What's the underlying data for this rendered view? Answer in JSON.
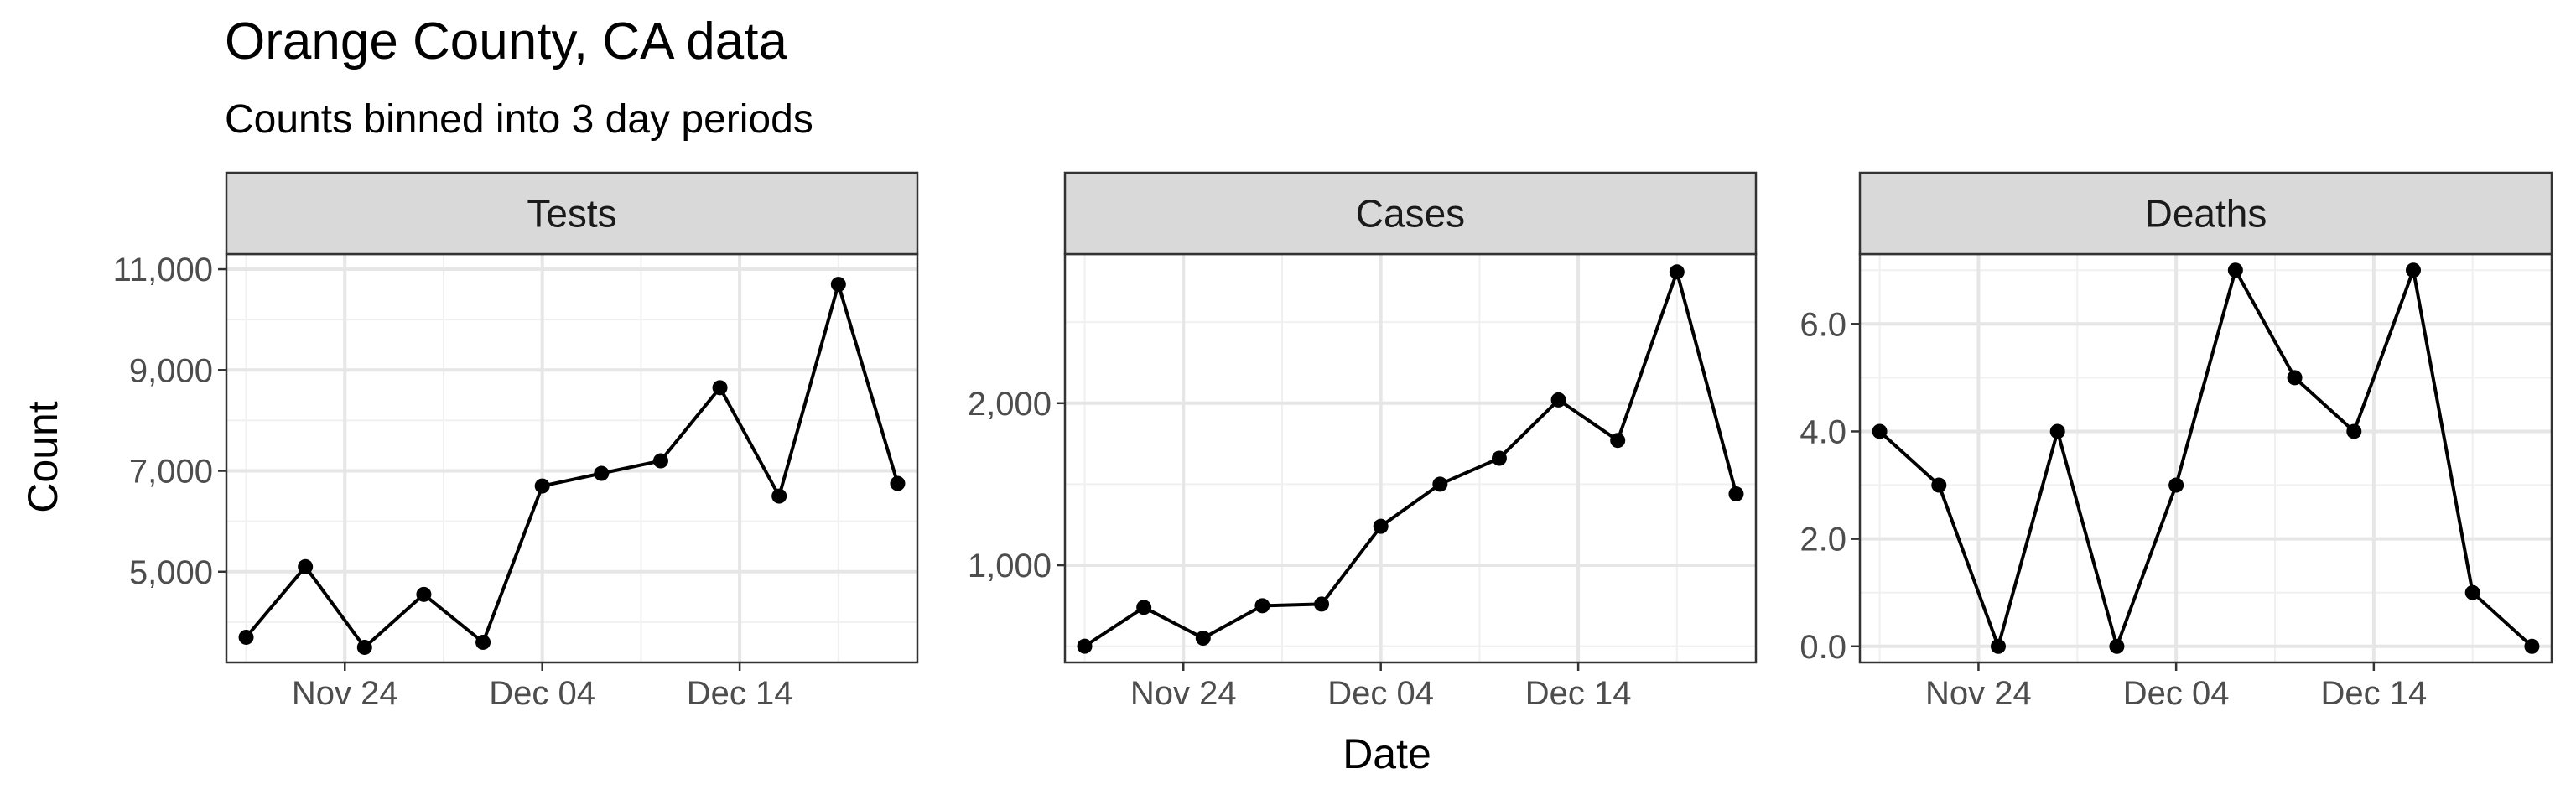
{
  "chart_data": {
    "type": "line",
    "title": "Orange County, CA data",
    "subtitle": "Counts binned into 3 day periods",
    "xlabel": "Date",
    "ylabel": "Count",
    "grid": true,
    "legend": "none",
    "line_color": "#000000",
    "point_color": "#000000",
    "strip_fill": "#d9d9d9",
    "x": [
      "2020-11-19",
      "2020-11-22",
      "2020-11-25",
      "2020-11-28",
      "2020-12-01",
      "2020-12-04",
      "2020-12-07",
      "2020-12-10",
      "2020-12-13",
      "2020-12-16",
      "2020-12-19",
      "2020-12-22"
    ],
    "xlim": [
      "2020-11-18",
      "2020-12-23"
    ],
    "xticks": [
      {
        "date": "2020-11-24",
        "label": "Nov 24"
      },
      {
        "date": "2020-12-04",
        "label": "Dec 04"
      },
      {
        "date": "2020-12-14",
        "label": "Dec 14"
      }
    ],
    "panels": [
      {
        "name": "Tests",
        "values": [
          3700,
          5100,
          3500,
          4550,
          3600,
          6700,
          6950,
          7200,
          8650,
          6500,
          10700,
          6750
        ],
        "ylim": [
          3200,
          11300
        ],
        "yticks": [
          {
            "value": 5000,
            "label": "5,000"
          },
          {
            "value": 7000,
            "label": "7,000"
          },
          {
            "value": 9000,
            "label": "9,000"
          },
          {
            "value": 11000,
            "label": "11,000"
          }
        ]
      },
      {
        "name": "Cases",
        "values": [
          500,
          740,
          550,
          750,
          760,
          1240,
          1500,
          1660,
          2020,
          1770,
          2810,
          1440
        ],
        "ylim": [
          400,
          2920
        ],
        "yticks": [
          {
            "value": 1000,
            "label": "1,000"
          },
          {
            "value": 2000,
            "label": "2,000"
          }
        ]
      },
      {
        "name": "Deaths",
        "values": [
          4,
          3,
          0,
          4,
          0,
          3,
          7,
          5,
          4,
          7,
          1,
          0
        ],
        "ylim": [
          -0.3,
          7.3
        ],
        "yticks": [
          {
            "value": 0,
            "label": "0.0"
          },
          {
            "value": 2,
            "label": "2.0"
          },
          {
            "value": 4,
            "label": "4.0"
          },
          {
            "value": 6,
            "label": "6.0"
          }
        ]
      }
    ]
  }
}
